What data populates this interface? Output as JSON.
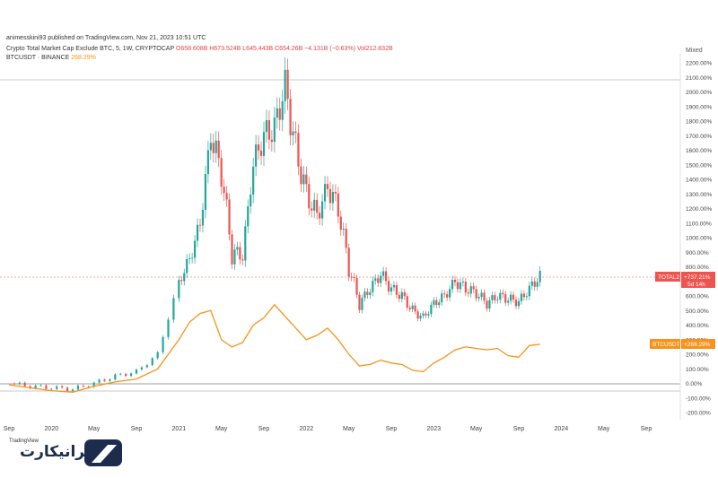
{
  "publish_line": "animesskini93 published on TradingView.com, Nov 21, 2023 10:51 UTC",
  "legend": {
    "series1_title": "Crypto Total Market Cap Exclude BTC, 5, 1W, CRYPTOCAP",
    "series1_ohlc": "O658.608B H673.524B L645.443B C654.26B −4.131B (−0.63%) Vol212.832B",
    "series2_title": "BTCUSDT · BINANCE",
    "series2_value": "268.29%"
  },
  "scale_mode": "Mixed",
  "tags": {
    "total2_label": "TOTAL2",
    "total2_value": "+737.21%",
    "total2_countdown": "5d 14h",
    "btc_label": "BTCUSDT",
    "btc_value": "+268.29%"
  },
  "logo": {
    "text": "ایرانیکارت",
    "sub": "TradingView"
  },
  "colors": {
    "up": "#26a69a",
    "down": "#ef5350",
    "btc": "#f7931a",
    "tag_red": "#ef5350",
    "tag_orange": "#f7931a"
  },
  "chart_data": {
    "type": "line",
    "x_ticks": [
      "Sep",
      "2020",
      "May",
      "Sep",
      "2021",
      "May",
      "Sep",
      "2022",
      "May",
      "Sep",
      "2023",
      "May",
      "Sep",
      "2024",
      "May",
      "Sep"
    ],
    "y_ticks": [
      "2200.00%",
      "2100.00%",
      "2000.00%",
      "1900.00%",
      "1800.00%",
      "1700.00%",
      "1600.00%",
      "1500.00%",
      "1400.00%",
      "1300.00%",
      "1200.00%",
      "1100.00%",
      "1000.00%",
      "900.00%",
      "800.00%",
      "700.00%",
      "600.00%",
      "500.00%",
      "400.00%",
      "300.00%",
      "200.00%",
      "100.00%",
      "0.00%",
      "-100.00%",
      "-200.00%"
    ],
    "ylim": [
      -200,
      2200
    ],
    "series": [
      {
        "name": "TOTAL2",
        "kind": "candlestick",
        "x": [
          "2019-09",
          "2019-11",
          "2020-01",
          "2020-03",
          "2020-05",
          "2020-07",
          "2020-09",
          "2020-11",
          "2021-01",
          "2021-02",
          "2021-03",
          "2021-04",
          "2021-05",
          "2021-06",
          "2021-07",
          "2021-08",
          "2021-09",
          "2021-10",
          "2021-11",
          "2021-12",
          "2022-01",
          "2022-02",
          "2022-03",
          "2022-04",
          "2022-05",
          "2022-06",
          "2022-07",
          "2022-08",
          "2022-09",
          "2022-10",
          "2022-11",
          "2022-12",
          "2023-01",
          "2023-02",
          "2023-03",
          "2023-04",
          "2023-05",
          "2023-06",
          "2023-07",
          "2023-08",
          "2023-09",
          "2023-10",
          "2023-11"
        ],
        "values": [
          0,
          -20,
          -30,
          -40,
          0,
          50,
          80,
          200,
          700,
          850,
          1100,
          1700,
          1450,
          900,
          880,
          1500,
          1700,
          1750,
          2050,
          1600,
          1300,
          1150,
          1350,
          1200,
          800,
          550,
          650,
          750,
          650,
          600,
          500,
          450,
          550,
          600,
          700,
          650,
          620,
          550,
          600,
          580,
          560,
          650,
          737
        ]
      },
      {
        "name": "BTCUSDT",
        "kind": "line",
        "x": [
          "2019-09",
          "2019-11",
          "2020-01",
          "2020-03",
          "2020-05",
          "2020-07",
          "2020-09",
          "2020-11",
          "2021-01",
          "2021-02",
          "2021-03",
          "2021-04",
          "2021-05",
          "2021-06",
          "2021-07",
          "2021-08",
          "2021-09",
          "2021-10",
          "2021-11",
          "2021-12",
          "2022-01",
          "2022-02",
          "2022-03",
          "2022-04",
          "2022-05",
          "2022-06",
          "2022-07",
          "2022-08",
          "2022-09",
          "2022-10",
          "2022-11",
          "2022-12",
          "2023-01",
          "2023-02",
          "2023-03",
          "2023-04",
          "2023-05",
          "2023-06",
          "2023-07",
          "2023-08",
          "2023-09",
          "2023-10",
          "2023-11"
        ],
        "values": [
          -10,
          -30,
          -50,
          -60,
          -20,
          10,
          30,
          100,
          300,
          420,
          480,
          500,
          300,
          250,
          280,
          400,
          450,
          540,
          460,
          380,
          300,
          330,
          380,
          300,
          200,
          120,
          130,
          160,
          140,
          130,
          90,
          80,
          140,
          180,
          230,
          250,
          240,
          230,
          240,
          190,
          180,
          260,
          268
        ]
      }
    ]
  }
}
